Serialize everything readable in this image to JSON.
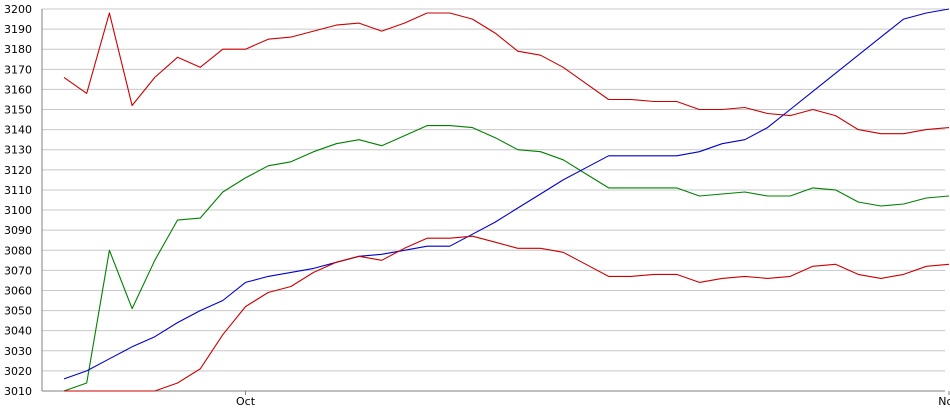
{
  "chart_data": {
    "type": "line",
    "title": "",
    "xlabel": "",
    "ylabel": "",
    "ylim": [
      3010,
      3200
    ],
    "yticks": [
      3010,
      3020,
      3030,
      3040,
      3050,
      3060,
      3070,
      3080,
      3090,
      3100,
      3110,
      3120,
      3130,
      3140,
      3150,
      3160,
      3170,
      3180,
      3190,
      3200
    ],
    "ytick_labels": [
      "3010",
      "3020",
      "3030",
      "3040",
      "3050",
      "3060",
      "3070",
      "3080",
      "3090",
      "3100",
      "3110",
      "3120",
      "3130",
      "3140",
      "3150",
      "3160",
      "3170",
      "3180",
      "3190",
      "3200"
    ],
    "xlim": [
      0,
      39
    ],
    "x_ticks": [
      {
        "label": "Oct",
        "x": 8
      },
      {
        "label": "Nov",
        "x": 39
      }
    ],
    "x": [
      0,
      1,
      2,
      3,
      4,
      5,
      6,
      7,
      8,
      9,
      10,
      11,
      12,
      13,
      14,
      15,
      16,
      17,
      18,
      19,
      20,
      21,
      22,
      23,
      24,
      25,
      26,
      27,
      28,
      29,
      30,
      31,
      32,
      33,
      34,
      35,
      36,
      37,
      38,
      39
    ],
    "grid": true,
    "legend": "none",
    "series": [
      {
        "color": "#cc0000",
        "values": [
          3166,
          3158,
          3198,
          3152,
          3166,
          3176,
          3171,
          3180,
          3180,
          3185,
          3186,
          3189,
          3192,
          3193,
          3189,
          3193,
          3198,
          3198,
          3195,
          3188,
          3179,
          3177,
          3171,
          3163,
          3155,
          3155,
          3154,
          3154,
          3150,
          3150,
          3151,
          3148,
          3147,
          3150,
          3147,
          3140,
          3138,
          3138,
          3140,
          3141
        ]
      },
      {
        "color": "#008000",
        "values": [
          3010,
          3014,
          3080,
          3051,
          3075,
          3095,
          3096,
          3109,
          3116,
          3122,
          3124,
          3129,
          3133,
          3135,
          3132,
          3137,
          3142,
          3142,
          3141,
          3136,
          3130,
          3129,
          3125,
          3118,
          3111,
          3111,
          3111,
          3111,
          3107,
          3108,
          3109,
          3107,
          3107,
          3111,
          3110,
          3104,
          3102,
          3103,
          3106,
          3107
        ]
      },
      {
        "color": "#0000cc",
        "values": [
          3016,
          3020,
          3026,
          3032,
          3037,
          3044,
          3050,
          3055,
          3064,
          3067,
          3069,
          3071,
          3074,
          3077,
          3078,
          3080,
          3082,
          3082,
          3088,
          3094,
          3101,
          3108,
          3115,
          3121,
          3127,
          3127,
          3127,
          3127,
          3129,
          3133,
          3135,
          3141,
          3150,
          3159,
          3168,
          3177,
          3186,
          3195,
          3198,
          3200
        ]
      },
      {
        "color": "#cc0000",
        "values": [
          3010,
          3010,
          3010,
          3010,
          3010,
          3014,
          3021,
          3038,
          3052,
          3059,
          3062,
          3069,
          3074,
          3077,
          3075,
          3081,
          3086,
          3086,
          3087,
          3084,
          3081,
          3081,
          3079,
          3073,
          3067,
          3067,
          3068,
          3068,
          3064,
          3066,
          3067,
          3066,
          3067,
          3072,
          3073,
          3068,
          3066,
          3068,
          3072,
          3073
        ]
      }
    ]
  }
}
